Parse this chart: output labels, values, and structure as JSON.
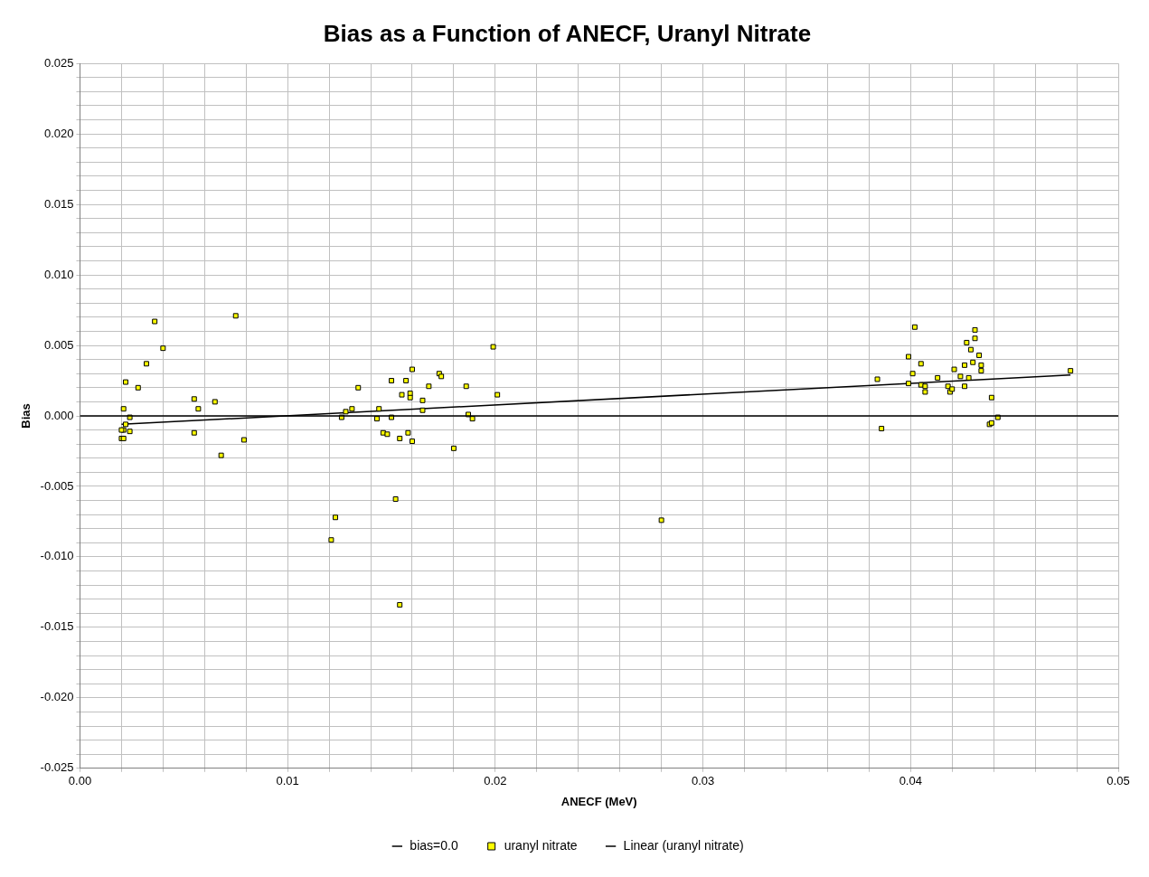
{
  "chart_data": {
    "type": "scatter",
    "title": "Bias as a Function of ANECF, Uranyl Nitrate",
    "xlabel": "ANECF (MeV)",
    "ylabel": "Bias",
    "xlim": [
      0,
      0.05
    ],
    "ylim": [
      -0.025,
      0.025
    ],
    "xticks": [
      {
        "value": 0,
        "label": "0.00"
      },
      {
        "value": 0.002,
        "label": null
      },
      {
        "value": 0.004,
        "label": null
      },
      {
        "value": 0.006,
        "label": null
      },
      {
        "value": 0.008,
        "label": null
      },
      {
        "value": 0.01,
        "label": "0.01"
      },
      {
        "value": 0.012,
        "label": null
      },
      {
        "value": 0.014,
        "label": null
      },
      {
        "value": 0.016,
        "label": null
      },
      {
        "value": 0.018,
        "label": null
      },
      {
        "value": 0.02,
        "label": "0.02"
      },
      {
        "value": 0.022,
        "label": null
      },
      {
        "value": 0.024,
        "label": null
      },
      {
        "value": 0.026,
        "label": null
      },
      {
        "value": 0.028,
        "label": null
      },
      {
        "value": 0.03,
        "label": "0.03"
      },
      {
        "value": 0.032,
        "label": null
      },
      {
        "value": 0.034,
        "label": null
      },
      {
        "value": 0.036,
        "label": null
      },
      {
        "value": 0.038,
        "label": null
      },
      {
        "value": 0.04,
        "label": "0.04"
      },
      {
        "value": 0.042,
        "label": null
      },
      {
        "value": 0.044,
        "label": null
      },
      {
        "value": 0.046,
        "label": null
      },
      {
        "value": 0.048,
        "label": null
      },
      {
        "value": 0.05,
        "label": "0.05"
      }
    ],
    "yticks": [
      {
        "value": -0.025,
        "label": "-0.025"
      },
      {
        "value": -0.024,
        "label": null
      },
      {
        "value": -0.023,
        "label": null
      },
      {
        "value": -0.022,
        "label": null
      },
      {
        "value": -0.021,
        "label": null
      },
      {
        "value": -0.02,
        "label": "-0.020"
      },
      {
        "value": -0.019,
        "label": null
      },
      {
        "value": -0.018,
        "label": null
      },
      {
        "value": -0.017,
        "label": null
      },
      {
        "value": -0.016,
        "label": null
      },
      {
        "value": -0.015,
        "label": "-0.015"
      },
      {
        "value": -0.014,
        "label": null
      },
      {
        "value": -0.013,
        "label": null
      },
      {
        "value": -0.012,
        "label": null
      },
      {
        "value": -0.011,
        "label": null
      },
      {
        "value": -0.01,
        "label": "-0.010"
      },
      {
        "value": -0.009,
        "label": null
      },
      {
        "value": -0.008,
        "label": null
      },
      {
        "value": -0.007,
        "label": null
      },
      {
        "value": -0.006,
        "label": null
      },
      {
        "value": -0.005,
        "label": "-0.005"
      },
      {
        "value": -0.004,
        "label": null
      },
      {
        "value": -0.003,
        "label": null
      },
      {
        "value": -0.002,
        "label": null
      },
      {
        "value": -0.001,
        "label": null
      },
      {
        "value": 0,
        "label": "0.000"
      },
      {
        "value": 0.001,
        "label": null
      },
      {
        "value": 0.002,
        "label": null
      },
      {
        "value": 0.003,
        "label": null
      },
      {
        "value": 0.004,
        "label": null
      },
      {
        "value": 0.005,
        "label": "0.005"
      },
      {
        "value": 0.006,
        "label": null
      },
      {
        "value": 0.007,
        "label": null
      },
      {
        "value": 0.008,
        "label": null
      },
      {
        "value": 0.009,
        "label": null
      },
      {
        "value": 0.01,
        "label": "0.010"
      },
      {
        "value": 0.011,
        "label": null
      },
      {
        "value": 0.012,
        "label": null
      },
      {
        "value": 0.013,
        "label": null
      },
      {
        "value": 0.014,
        "label": null
      },
      {
        "value": 0.015,
        "label": "0.015"
      },
      {
        "value": 0.016,
        "label": null
      },
      {
        "value": 0.017,
        "label": null
      },
      {
        "value": 0.018,
        "label": null
      },
      {
        "value": 0.019,
        "label": null
      },
      {
        "value": 0.02,
        "label": "0.020"
      },
      {
        "value": 0.021,
        "label": null
      },
      {
        "value": 0.022,
        "label": null
      },
      {
        "value": 0.023,
        "label": null
      },
      {
        "value": 0.024,
        "label": null
      },
      {
        "value": 0.025,
        "label": "0.025"
      }
    ],
    "grid": true,
    "legend": "bottom",
    "series": [
      {
        "name": "bias=0.0",
        "type": "line",
        "color": "#000000",
        "x": [
          0,
          0.05
        ],
        "values": [
          0,
          0
        ]
      },
      {
        "name": "uranyl nitrate",
        "marker": "square",
        "color": "#ffff00",
        "x": [
          0.0021,
          0.0022,
          0.0024,
          0.0022,
          0.0021,
          0.002,
          0.0024,
          0.002,
          0.0021,
          0.0036,
          0.004,
          0.0032,
          0.0028,
          0.0075,
          0.0055,
          0.0065,
          0.0057,
          0.0055,
          0.0079,
          0.0068,
          0.0199,
          0.016,
          0.015,
          0.0157,
          0.0173,
          0.0174,
          0.0134,
          0.0168,
          0.0186,
          0.0155,
          0.0159,
          0.0159,
          0.0165,
          0.0201,
          0.0131,
          0.0128,
          0.0144,
          0.0165,
          0.0187,
          0.0126,
          0.0143,
          0.015,
          0.0189,
          0.0146,
          0.0148,
          0.0158,
          0.0154,
          0.016,
          0.018,
          0.0152,
          0.0123,
          0.0121,
          0.0154,
          0.028,
          0.0402,
          0.0431,
          0.0431,
          0.0427,
          0.0429,
          0.0399,
          0.0433,
          0.0405,
          0.043,
          0.0426,
          0.0434,
          0.0434,
          0.0421,
          0.0401,
          0.0384,
          0.0413,
          0.0424,
          0.0428,
          0.0399,
          0.0405,
          0.0407,
          0.0407,
          0.0418,
          0.0419,
          0.042,
          0.0426,
          0.0439,
          0.0477,
          0.0442,
          0.0438,
          0.0439,
          0.0386
        ],
        "values": [
          0.0005,
          0.0024,
          -0.0001,
          -0.0006,
          -0.001,
          -0.001,
          -0.0011,
          -0.0016,
          -0.0016,
          0.0067,
          0.0048,
          0.0037,
          0.002,
          0.0071,
          0.0012,
          0.001,
          0.0005,
          -0.0012,
          -0.0017,
          -0.0028,
          0.0049,
          0.0033,
          0.0025,
          0.0025,
          0.003,
          0.0028,
          0.002,
          0.0021,
          0.0021,
          0.0015,
          0.0016,
          0.0013,
          0.0011,
          0.0015,
          0.0005,
          0.0003,
          0.0005,
          0.0004,
          0.0001,
          -0.0001,
          -0.0002,
          -0.0001,
          -0.0002,
          -0.0012,
          -0.0013,
          -0.0012,
          -0.0016,
          -0.0018,
          -0.0023,
          -0.0059,
          -0.0072,
          -0.0088,
          -0.0134,
          -0.0074,
          0.0063,
          0.0061,
          0.0055,
          0.0052,
          0.0047,
          0.0042,
          0.0043,
          0.0037,
          0.0038,
          0.0036,
          0.0036,
          0.0032,
          0.0033,
          0.003,
          0.0026,
          0.0027,
          0.0028,
          0.0027,
          0.0023,
          0.0022,
          0.0021,
          0.0017,
          0.0021,
          0.0017,
          0.0019,
          0.0021,
          0.0013,
          0.0032,
          -0.0001,
          -0.0006,
          -0.0005,
          -0.0009
        ]
      },
      {
        "name": "Linear (uranyl nitrate)",
        "type": "line",
        "color": "#000000",
        "x": [
          0.002,
          0.0477
        ],
        "values": [
          -0.0006,
          0.0029
        ]
      }
    ]
  }
}
